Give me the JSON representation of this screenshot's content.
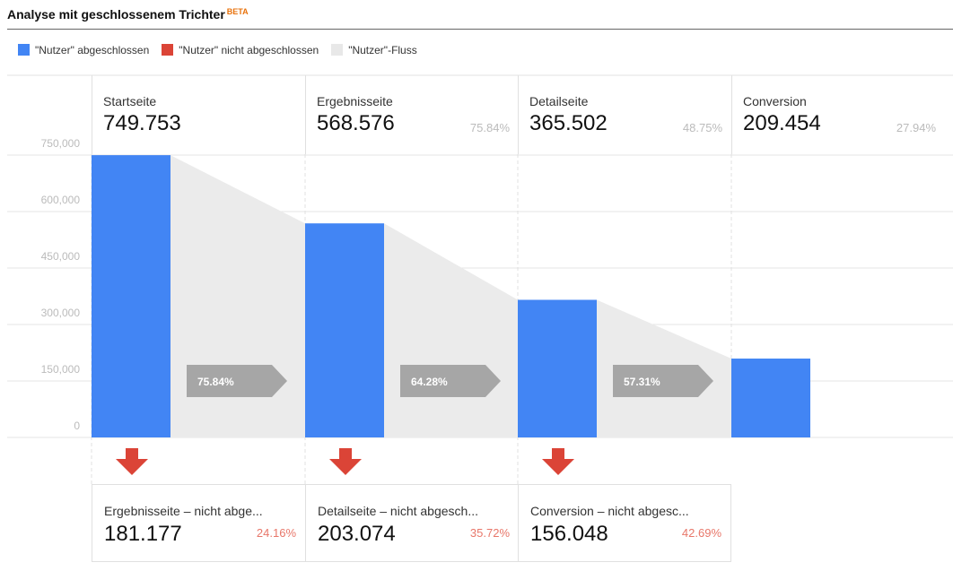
{
  "title": "Analyse mit geschlossenem Trichter",
  "badge": "BETA",
  "legend": [
    {
      "label": "\"Nutzer\" abgeschlossen",
      "color": "#4285f4"
    },
    {
      "label": "\"Nutzer\" nicht abgeschlossen",
      "color": "#db4437"
    },
    {
      "label": "\"Nutzer\"-Fluss",
      "color": "#e8e8e8"
    }
  ],
  "chart_data": {
    "type": "bar",
    "categories": [
      "Startseite",
      "Ergebnisseite",
      "Detailseite",
      "Conversion"
    ],
    "values": [
      749753,
      568576,
      365502,
      209454
    ],
    "value_labels": [
      "749.753",
      "568.576",
      "365.502",
      "209.454"
    ],
    "percent_of_start": [
      "",
      "75.84%",
      "48.75%",
      "27.94%"
    ],
    "step_conversion": [
      "75.84%",
      "64.28%",
      "57.31%"
    ],
    "dropoffs": [
      {
        "label": "Ergebnisseite – nicht abge...",
        "value": 181177,
        "value_label": "181.177",
        "percent": "24.16%"
      },
      {
        "label": "Detailseite – nicht abgesch...",
        "value": 203074,
        "value_label": "203.074",
        "percent": "35.72%"
      },
      {
        "label": "Conversion – nicht abgesc...",
        "value": 156048,
        "value_label": "156.048",
        "percent": "42.69%"
      }
    ],
    "yticks": [
      "0",
      "150,000",
      "300,000",
      "450,000",
      "600,000",
      "750,000"
    ],
    "ylim": [
      0,
      750000
    ],
    "grid": true,
    "legend_position": "top-left",
    "colors": {
      "completed": "#4285f4",
      "dropped": "#db4437",
      "flow": "#ebebeb",
      "step_arrow": "#a6a6a6"
    }
  }
}
